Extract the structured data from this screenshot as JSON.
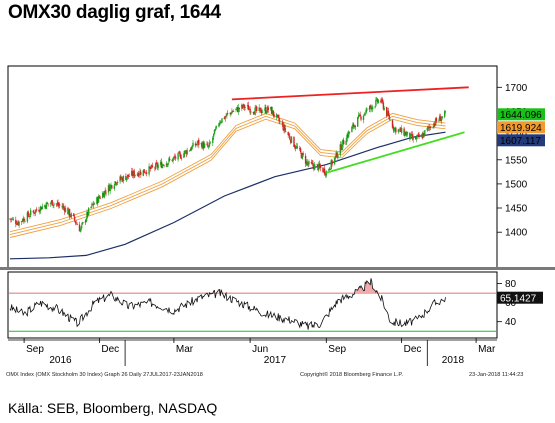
{
  "title": "OMX30 daglig graf, 1644",
  "source": "Källa: SEB, Bloomberg, NASDAQ",
  "footer": {
    "left": "OMX Index (OMX Stockholm 30 Index) Graph 26  Daily 27JUL2017-23JAN2018",
    "center": "Copyright© 2018 Bloomberg Finance L.P.",
    "right": "23-Jan-2018 11:44:23"
  },
  "colors": {
    "price_up": "#21a121",
    "price_down": "#d42020",
    "ma_band": "#f0a040",
    "ma_long": "#1b2f66",
    "resistance_line": "#ee2020",
    "support_line": "#44dd22",
    "rsi_line": "#111111",
    "rsi_upper": "#d04848",
    "rsi_lower": "#22bb22",
    "label_last": "#18c018",
    "label_ma": "#f29a2e",
    "label_ma_long": "#233b7a"
  },
  "chart_data": [
    {
      "type": "candlestick",
      "name": "OMX30 daily price",
      "x_range": [
        "2016-08-15",
        "2018-03-25"
      ],
      "ylim": [
        1330,
        1740
      ],
      "y_ticks": [
        1400,
        1450,
        1500,
        1550,
        1600,
        1650,
        1700
      ],
      "grid": false,
      "price_path": [
        [
          "2016-08-15",
          1428
        ],
        [
          "2016-08-25",
          1420
        ],
        [
          "2016-09-10",
          1440
        ],
        [
          "2016-09-25",
          1455
        ],
        [
          "2016-10-05",
          1462
        ],
        [
          "2016-10-20",
          1450
        ],
        [
          "2016-11-01",
          1425
        ],
        [
          "2016-11-08",
          1405
        ],
        [
          "2016-11-20",
          1450
        ],
        [
          "2016-12-05",
          1480
        ],
        [
          "2016-12-20",
          1505
        ],
        [
          "2017-01-10",
          1520
        ],
        [
          "2017-01-31",
          1530
        ],
        [
          "2017-02-20",
          1545
        ],
        [
          "2017-03-10",
          1560
        ],
        [
          "2017-03-30",
          1585
        ],
        [
          "2017-04-12",
          1575
        ],
        [
          "2017-04-25",
          1630
        ],
        [
          "2017-05-10",
          1650
        ],
        [
          "2017-05-25",
          1660
        ],
        [
          "2017-06-10",
          1650
        ],
        [
          "2017-06-25",
          1655
        ],
        [
          "2017-07-10",
          1620
        ],
        [
          "2017-07-25",
          1580
        ],
        [
          "2017-08-10",
          1540
        ],
        [
          "2017-08-22",
          1535
        ],
        [
          "2017-09-01",
          1525
        ],
        [
          "2017-09-12",
          1555
        ],
        [
          "2017-09-26",
          1600
        ],
        [
          "2017-10-10",
          1635
        ],
        [
          "2017-10-22",
          1655
        ],
        [
          "2017-11-05",
          1675
        ],
        [
          "2017-11-12",
          1650
        ],
        [
          "2017-11-22",
          1615
        ],
        [
          "2017-12-05",
          1605
        ],
        [
          "2017-12-15",
          1592
        ],
        [
          "2017-12-25",
          1598
        ],
        [
          "2018-01-05",
          1620
        ],
        [
          "2018-01-12",
          1630
        ],
        [
          "2018-01-20",
          1640
        ],
        [
          "2018-01-23",
          1644
        ]
      ],
      "series_lines": [
        {
          "name": "moving-average band",
          "style": "orange triple band",
          "points": [
            [
              "2016-08-15",
              1395
            ],
            [
              "2016-10-15",
              1420
            ],
            [
              "2016-12-15",
              1455
            ],
            [
              "2017-02-15",
              1500
            ],
            [
              "2017-04-15",
              1555
            ],
            [
              "2017-05-15",
              1615
            ],
            [
              "2017-06-20",
              1640
            ],
            [
              "2017-07-25",
              1620
            ],
            [
              "2017-08-25",
              1565
            ],
            [
              "2017-09-20",
              1560
            ],
            [
              "2017-10-20",
              1610
            ],
            [
              "2017-11-20",
              1640
            ],
            [
              "2017-12-20",
              1627
            ],
            [
              "2018-01-23",
              1620
            ]
          ]
        },
        {
          "name": "long moving average",
          "style": "dark blue",
          "points": [
            [
              "2016-08-15",
              1345
            ],
            [
              "2016-10-01",
              1347
            ],
            [
              "2016-11-15",
              1352
            ],
            [
              "2017-01-01",
              1375
            ],
            [
              "2017-03-01",
              1420
            ],
            [
              "2017-05-01",
              1475
            ],
            [
              "2017-07-01",
              1515
            ],
            [
              "2017-09-01",
              1540
            ],
            [
              "2017-11-01",
              1575
            ],
            [
              "2017-12-15",
              1597
            ],
            [
              "2018-01-23",
              1607
            ]
          ]
        },
        {
          "name": "resistance trendline",
          "style": "red",
          "points": [
            [
              "2017-05-10",
              1675
            ],
            [
              "2018-02-20",
              1700
            ]
          ]
        },
        {
          "name": "support trendline",
          "style": "green",
          "points": [
            [
              "2017-09-01",
              1523
            ],
            [
              "2018-02-15",
              1607
            ]
          ]
        }
      ],
      "last_value_labels": [
        {
          "value": "1644.096",
          "color_key": "label_last"
        },
        {
          "value": "1619.924",
          "color_key": "label_ma"
        },
        {
          "value": "1607.117",
          "color_key": "label_ma_long"
        }
      ]
    },
    {
      "type": "line",
      "name": "RSI",
      "x_range": [
        "2016-08-15",
        "2018-03-25"
      ],
      "ylim": [
        25,
        90
      ],
      "y_ticks": [
        40,
        60,
        80
      ],
      "reference_lines": [
        70,
        30
      ],
      "last_value_label": "65.1427",
      "values": [
        [
          "2016-08-15",
          55
        ],
        [
          "2016-09-01",
          48
        ],
        [
          "2016-09-20",
          60
        ],
        [
          "2016-10-10",
          54
        ],
        [
          "2016-11-05",
          38
        ],
        [
          "2016-11-25",
          60
        ],
        [
          "2016-12-15",
          68
        ],
        [
          "2017-01-05",
          56
        ],
        [
          "2017-02-01",
          60
        ],
        [
          "2017-03-01",
          52
        ],
        [
          "2017-04-01",
          65
        ],
        [
          "2017-04-25",
          70
        ],
        [
          "2017-05-20",
          60
        ],
        [
          "2017-06-20",
          48
        ],
        [
          "2017-07-20",
          42
        ],
        [
          "2017-08-10",
          35
        ],
        [
          "2017-08-25",
          38
        ],
        [
          "2017-09-15",
          62
        ],
        [
          "2017-10-10",
          72
        ],
        [
          "2017-10-25",
          82
        ],
        [
          "2017-11-08",
          62
        ],
        [
          "2017-11-18",
          40
        ],
        [
          "2017-12-05",
          38
        ],
        [
          "2017-12-20",
          42
        ],
        [
          "2018-01-08",
          58
        ],
        [
          "2018-01-23",
          65
        ]
      ]
    }
  ],
  "x_axis": {
    "month_labels": [
      {
        "label": "Sep",
        "date": "2016-09-01"
      },
      {
        "label": "Dec",
        "date": "2016-12-01"
      },
      {
        "label": "Mar",
        "date": "2017-03-01"
      },
      {
        "label": "Jun",
        "date": "2017-06-01"
      },
      {
        "label": "Sep",
        "date": "2017-09-01"
      },
      {
        "label": "Dec",
        "date": "2017-12-01"
      },
      {
        "label": "Mar",
        "date": "2018-03-01"
      }
    ],
    "year_labels": [
      {
        "label": "2016",
        "date": "2016-10-15"
      },
      {
        "label": "2017",
        "date": "2017-07-01"
      },
      {
        "label": "2018",
        "date": "2018-02-01"
      }
    ]
  }
}
